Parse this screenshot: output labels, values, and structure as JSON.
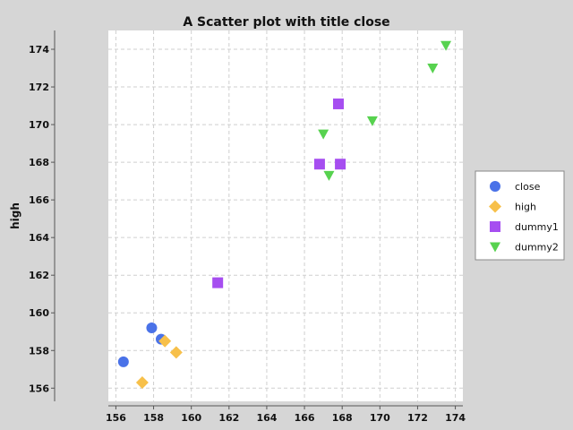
{
  "chart_data": {
    "type": "scatter",
    "title": "A Scatter plot with title close",
    "xlabel": "",
    "ylabel": "high",
    "xlim": [
      155.6,
      174.4
    ],
    "ylim": [
      155.3,
      175.0
    ],
    "xticks": [
      156,
      158,
      160,
      162,
      164,
      166,
      168,
      170,
      172,
      174
    ],
    "yticks": [
      156,
      158,
      160,
      162,
      164,
      166,
      168,
      170,
      172,
      174
    ],
    "grid": true,
    "legend_position": "right",
    "series": [
      {
        "name": "close",
        "marker": "circle",
        "color": "#4a72e8",
        "points": [
          [
            156.4,
            157.4
          ],
          [
            157.9,
            159.2
          ],
          [
            158.4,
            158.6
          ]
        ]
      },
      {
        "name": "high",
        "marker": "diamond",
        "color": "#f7c04a",
        "points": [
          [
            157.4,
            156.3
          ],
          [
            158.6,
            158.5
          ],
          [
            159.2,
            157.9
          ]
        ]
      },
      {
        "name": "dummy1",
        "marker": "square",
        "color": "#a64ef0",
        "points": [
          [
            161.4,
            161.6
          ],
          [
            166.8,
            167.9
          ],
          [
            167.9,
            167.9
          ],
          [
            167.8,
            171.1
          ]
        ]
      },
      {
        "name": "dummy2",
        "marker": "triangle-down",
        "color": "#57d24f",
        "points": [
          [
            167.0,
            169.5
          ],
          [
            167.3,
            167.3
          ],
          [
            169.6,
            170.2
          ],
          [
            172.8,
            173.0
          ],
          [
            173.5,
            174.2
          ]
        ]
      }
    ]
  }
}
